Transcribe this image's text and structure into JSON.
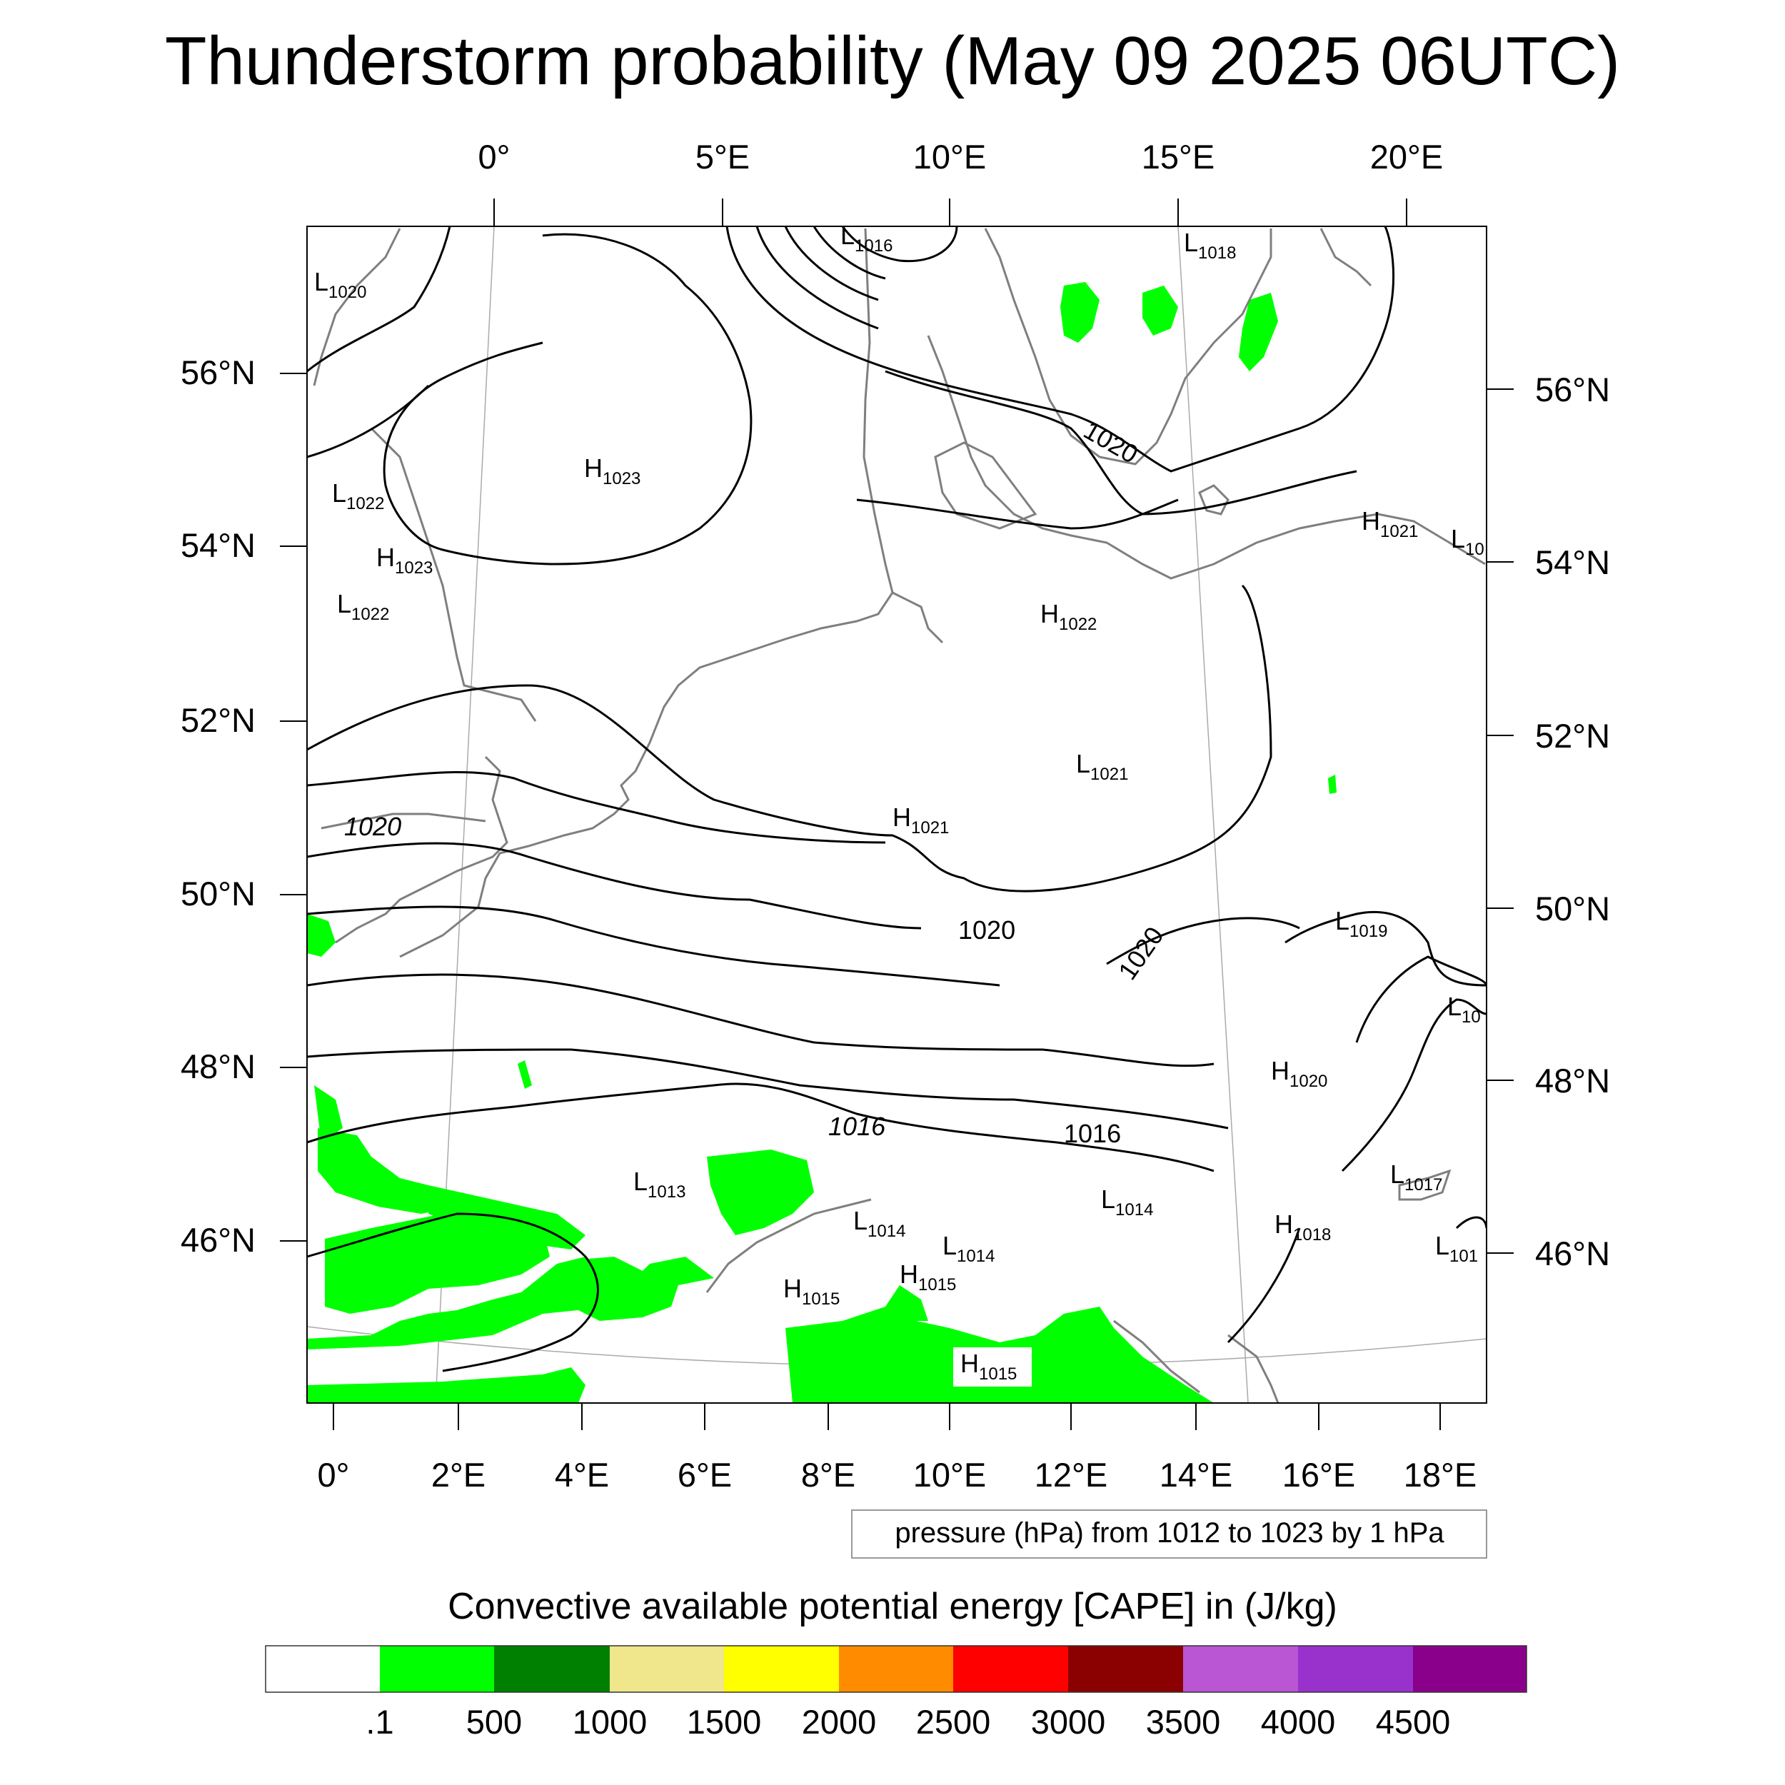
{
  "title": "Thunderstorm probability (May 09 2025 06UTC)",
  "contour_note": "pressure (hPa) from 1012 to 1023 by 1 hPa",
  "colorbar_title": "Convective available potential energy [CAPE] in (J/kg)",
  "colorbar": {
    "labels": [
      ".1",
      "500",
      "1000",
      "1500",
      "2000",
      "2500",
      "3000",
      "3500",
      "4000",
      "4500"
    ],
    "colors": [
      "#ffffff",
      "#00ff00",
      "#008000",
      "#f0e68c",
      "#ffff00",
      "#ff8c00",
      "#ff0000",
      "#8b0000",
      "#ba55d3",
      "#9932cc",
      "#8b008b"
    ]
  },
  "axes": {
    "top_lon": [
      "0°",
      "5°E",
      "10°E",
      "15°E",
      "20°E"
    ],
    "bottom_lon": [
      "0°",
      "2°E",
      "4°E",
      "6°E",
      "8°E",
      "10°E",
      "12°E",
      "14°E",
      "16°E",
      "18°E"
    ],
    "left_lat": [
      "56°N",
      "54°N",
      "52°N",
      "50°N",
      "48°N",
      "46°N"
    ],
    "right_lat": [
      "56°N",
      "54°N",
      "52°N",
      "50°N",
      "48°N",
      "46°N"
    ]
  },
  "isobar_values": [
    "1020",
    "1020",
    "1020",
    "1020",
    "1016",
    "1016"
  ],
  "pressure_centers": [
    {
      "type": "L",
      "value": "1016"
    },
    {
      "type": "L",
      "value": "1018"
    },
    {
      "type": "L",
      "value": "1020"
    },
    {
      "type": "H",
      "value": "1023"
    },
    {
      "type": "L",
      "value": "1022"
    },
    {
      "type": "H",
      "value": "1023"
    },
    {
      "type": "L",
      "value": "1022"
    },
    {
      "type": "H",
      "value": "1021"
    },
    {
      "type": "L",
      "value": "10"
    },
    {
      "type": "H",
      "value": "1022"
    },
    {
      "type": "L",
      "value": "1021"
    },
    {
      "type": "H",
      "value": "1021"
    },
    {
      "type": "L",
      "value": "1019"
    },
    {
      "type": "L",
      "value": "10"
    },
    {
      "type": "H",
      "value": "1020"
    },
    {
      "type": "L",
      "value": "1013"
    },
    {
      "type": "L",
      "value": "1014"
    },
    {
      "type": "L",
      "value": "1014"
    },
    {
      "type": "L",
      "value": "1014"
    },
    {
      "type": "H",
      "value": "1018"
    },
    {
      "type": "L",
      "value": "1017"
    },
    {
      "type": "L",
      "value": "101"
    },
    {
      "type": "H",
      "value": "1015"
    },
    {
      "type": "H",
      "value": "1015"
    },
    {
      "type": "H",
      "value": "1015"
    }
  ]
}
